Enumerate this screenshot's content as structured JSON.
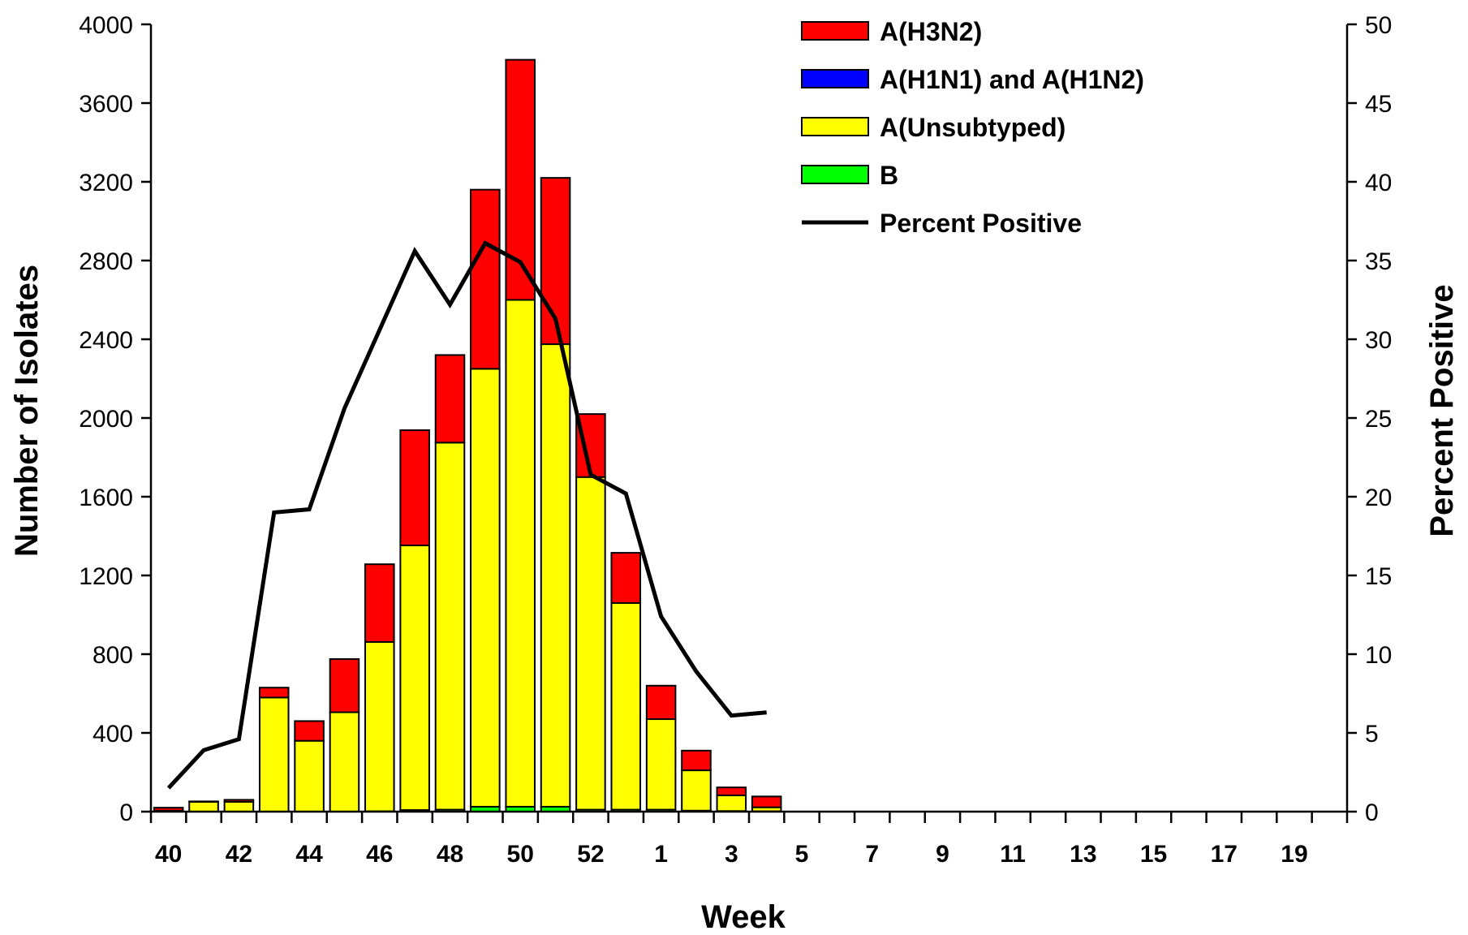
{
  "chart_data": {
    "type": "bar",
    "stacked": true,
    "xlabel": "Week",
    "ylabel": "Number of Isolates",
    "y2label": "Percent Positive",
    "ylim": [
      0,
      4000
    ],
    "y2lim": [
      0,
      50
    ],
    "yticks": [
      0,
      400,
      800,
      1200,
      1600,
      2000,
      2400,
      2800,
      3200,
      3600,
      4000
    ],
    "y2ticks": [
      0,
      5,
      10,
      15,
      20,
      25,
      30,
      35,
      40,
      45,
      50
    ],
    "categories": [
      "40",
      "41",
      "42",
      "43",
      "44",
      "45",
      "46",
      "47",
      "48",
      "49",
      "50",
      "51",
      "52",
      "53",
      "1",
      "2",
      "3",
      "4",
      "5",
      "6",
      "7",
      "8",
      "9",
      "10",
      "11",
      "12",
      "13",
      "14",
      "15",
      "16",
      "17",
      "18",
      "19",
      "20"
    ],
    "x_tick_labels": [
      "40",
      "42",
      "44",
      "46",
      "48",
      "50",
      "52",
      "1",
      "3",
      "5",
      "7",
      "9",
      "11",
      "13",
      "15",
      "17",
      "19"
    ],
    "legend_position": "top-right",
    "grid": false,
    "series": [
      {
        "name": "B",
        "color": "#00ff00",
        "values": [
          0,
          0,
          0,
          0,
          0,
          0,
          2,
          8,
          10,
          25,
          25,
          25,
          10,
          10,
          10,
          5,
          3,
          2,
          null,
          null,
          null,
          null,
          null,
          null,
          null,
          null,
          null,
          null,
          null,
          null,
          null,
          null,
          null,
          null
        ]
      },
      {
        "name": "A(Unsubtyped)",
        "color": "#ffff00",
        "values": [
          5,
          50,
          50,
          580,
          360,
          505,
          860,
          1345,
          1865,
          2225,
          2575,
          2350,
          1690,
          1050,
          460,
          205,
          80,
          20,
          null,
          null,
          null,
          null,
          null,
          null,
          null,
          null,
          null,
          null,
          null,
          null,
          null,
          null,
          null,
          null
        ]
      },
      {
        "name": "A(H1N1) and A(H1N2)",
        "color": "#0000ff",
        "values": [
          0,
          0,
          0,
          0,
          0,
          0,
          0,
          0,
          0,
          0,
          0,
          0,
          0,
          0,
          0,
          0,
          0,
          0,
          null,
          null,
          null,
          null,
          null,
          null,
          null,
          null,
          null,
          null,
          null,
          null,
          null,
          null,
          null,
          null
        ]
      },
      {
        "name": "A(H3N2)",
        "color": "#ff0000",
        "values": [
          15,
          2,
          10,
          50,
          100,
          270,
          395,
          585,
          445,
          910,
          1220,
          845,
          320,
          255,
          170,
          100,
          40,
          55,
          null,
          null,
          null,
          null,
          null,
          null,
          null,
          null,
          null,
          null,
          null,
          null,
          null,
          null,
          null,
          null
        ]
      },
      {
        "name": "Percent Positive",
        "type": "line",
        "axis": "right",
        "color": "#000000",
        "values": [
          1.5,
          3.9,
          4.6,
          19.0,
          19.2,
          25.6,
          30.6,
          35.6,
          32.2,
          36.1,
          34.9,
          31.3,
          21.4,
          20.2,
          12.4,
          8.9,
          6.1,
          6.3,
          null,
          null,
          null,
          null,
          null,
          null,
          null,
          null,
          null,
          null,
          null,
          null,
          null,
          null,
          null,
          null
        ]
      }
    ],
    "legend_order": [
      "A(H3N2)",
      "A(H1N1) and A(H1N2)",
      "A(Unsubtyped)",
      "B",
      "Percent Positive"
    ]
  }
}
